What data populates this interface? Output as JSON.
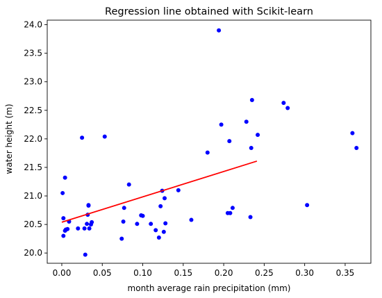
{
  "chart_data": {
    "type": "scatter",
    "title": "Regression line obtained with Scikit-learn",
    "xlabel": "month average rain precipitation (mm)",
    "ylabel": "water height (m)",
    "xlim": [
      -0.018,
      0.3818
    ],
    "ylim": [
      19.82,
      24.08
    ],
    "xticks": [
      0.0,
      0.05,
      0.1,
      0.15,
      0.2,
      0.25,
      0.3,
      0.35
    ],
    "xtick_labels": [
      "0.00",
      "0.05",
      "0.10",
      "0.15",
      "0.20",
      "0.25",
      "0.30",
      "0.35"
    ],
    "yticks": [
      20.0,
      20.5,
      21.0,
      21.5,
      22.0,
      22.5,
      23.0,
      23.5,
      24.0
    ],
    "ytick_labels": [
      "20.0",
      "20.5",
      "21.0",
      "21.5",
      "22.0",
      "22.5",
      "23.0",
      "23.5",
      "24.0"
    ],
    "grid": false,
    "legend": "none",
    "points": {
      "color": "#0000ff",
      "x": [
        0.001,
        0.002,
        0.002,
        0.004,
        0.004,
        0.005,
        0.007,
        0.009,
        0.02,
        0.025,
        0.028,
        0.029,
        0.031,
        0.032,
        0.033,
        0.033,
        0.034,
        0.036,
        0.037,
        0.053,
        0.074,
        0.076,
        0.077,
        0.083,
        0.093,
        0.098,
        0.1,
        0.11,
        0.116,
        0.12,
        0.122,
        0.124,
        0.126,
        0.127,
        0.128,
        0.144,
        0.16,
        0.18,
        0.194,
        0.197,
        0.205,
        0.207,
        0.208,
        0.211,
        0.228,
        0.233,
        0.234,
        0.235,
        0.242,
        0.274,
        0.279,
        0.303,
        0.359,
        0.364
      ],
      "y": [
        21.05,
        20.3,
        20.61,
        20.39,
        21.32,
        20.41,
        20.42,
        20.55,
        20.43,
        22.02,
        20.43,
        19.97,
        20.51,
        20.67,
        20.84,
        20.83,
        20.43,
        20.5,
        20.54,
        22.04,
        20.25,
        20.55,
        20.79,
        21.2,
        20.51,
        20.66,
        20.65,
        20.51,
        20.4,
        20.27,
        20.82,
        21.09,
        20.37,
        20.96,
        20.52,
        21.1,
        20.58,
        21.76,
        23.9,
        22.25,
        20.7,
        21.96,
        20.7,
        20.79,
        22.3,
        20.63,
        21.84,
        22.68,
        22.07,
        22.63,
        22.54,
        20.84,
        22.1,
        21.84
      ]
    },
    "regression_line": {
      "color": "#ff0000",
      "x": [
        0.0,
        0.241
      ],
      "y": [
        20.54,
        21.61
      ]
    }
  }
}
